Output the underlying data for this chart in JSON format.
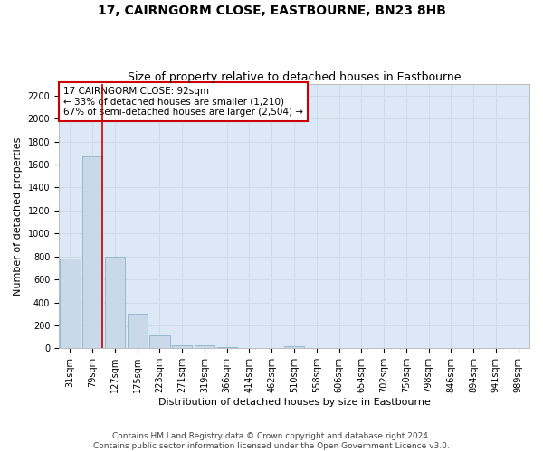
{
  "title": "17, CAIRNGORM CLOSE, EASTBOURNE, BN23 8HB",
  "subtitle": "Size of property relative to detached houses in Eastbourne",
  "xlabel": "Distribution of detached houses by size in Eastbourne",
  "ylabel": "Number of detached properties",
  "categories": [
    "31sqm",
    "79sqm",
    "127sqm",
    "175sqm",
    "223sqm",
    "271sqm",
    "319sqm",
    "366sqm",
    "414sqm",
    "462sqm",
    "510sqm",
    "558sqm",
    "606sqm",
    "654sqm",
    "702sqm",
    "750sqm",
    "798sqm",
    "846sqm",
    "894sqm",
    "941sqm",
    "989sqm"
  ],
  "values": [
    780,
    1670,
    800,
    300,
    115,
    30,
    25,
    10,
    0,
    0,
    20,
    0,
    0,
    0,
    0,
    0,
    0,
    0,
    0,
    0,
    0
  ],
  "bar_color": "#c9d9ea",
  "bar_edge_color": "#8ab4cc",
  "grid_color": "#ccdaeb",
  "background_color": "#dce8f5",
  "annotation_text": "17 CAIRNGORM CLOSE: 92sqm\n← 33% of detached houses are smaller (1,210)\n67% of semi-detached houses are larger (2,504) →",
  "annotation_box_color": "#cc0000",
  "ylim": [
    0,
    2300
  ],
  "yticks": [
    0,
    200,
    400,
    600,
    800,
    1000,
    1200,
    1400,
    1600,
    1800,
    2000,
    2200
  ],
  "footer_line1": "Contains HM Land Registry data © Crown copyright and database right 2024.",
  "footer_line2": "Contains public sector information licensed under the Open Government Licence v3.0.",
  "title_fontsize": 10,
  "subtitle_fontsize": 9,
  "xlabel_fontsize": 8,
  "ylabel_fontsize": 8,
  "tick_fontsize": 7,
  "annotation_fontsize": 7.5,
  "footer_fontsize": 6.5
}
